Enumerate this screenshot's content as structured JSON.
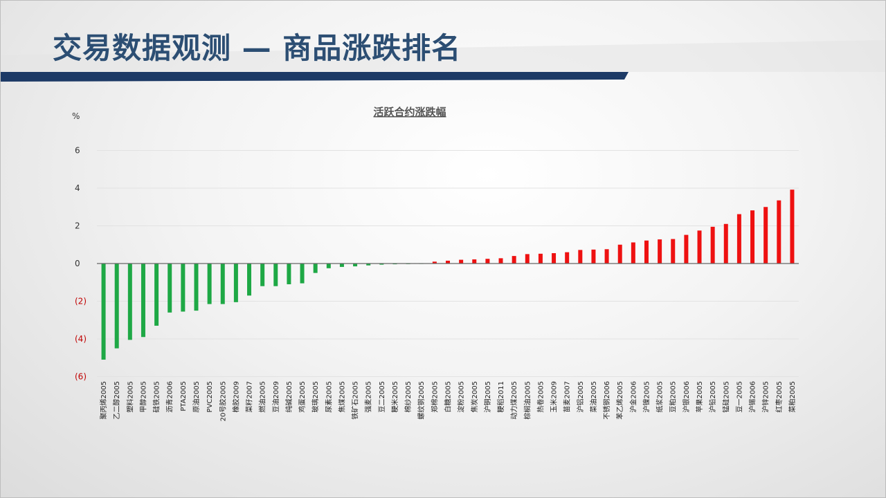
{
  "page": {
    "title": "交易数据观测 — 商品涨跌排名"
  },
  "colors": {
    "positive": "#ee1111",
    "negative": "#1ea845",
    "header_band": "#1d3a66",
    "title": "#2c4e73"
  },
  "chart_data": {
    "type": "bar",
    "title": "活跃合约涨跌幅",
    "xlabel": "",
    "ylabel": "%",
    "ylim": [
      -6,
      7
    ],
    "yticks": [
      {
        "value": 6,
        "label": "6"
      },
      {
        "value": 4,
        "label": "4"
      },
      {
        "value": 2,
        "label": "2"
      },
      {
        "value": 0,
        "label": "0"
      },
      {
        "value": -2,
        "label": "(2)"
      },
      {
        "value": -4,
        "label": "(4)"
      },
      {
        "value": -6,
        "label": "(6)"
      }
    ],
    "grid": true,
    "legend": "none",
    "categories": [
      "聚丙烯2005",
      "乙二醇2005",
      "塑料2005",
      "甲醇2005",
      "硅铁2005",
      "沥青2006",
      "PTA2005",
      "原油2005",
      "PVC2005",
      "20号胶2005",
      "橡胶2009",
      "菜籽2007",
      "燃油2005",
      "豆油2009",
      "纯碱2005",
      "鸡蛋2005",
      "玻璃2005",
      "尿素2005",
      "焦煤2005",
      "铁矿石2005",
      "强麦2005",
      "豆二2005",
      "粳米2005",
      "棉纱2005",
      "螺纹钢2005",
      "郑棉2005",
      "白糖2005",
      "淀粉2005",
      "焦炭2005",
      "沪铜2005",
      "粳稻2011",
      "动力煤2005",
      "棕榈油2005",
      "热卷2005",
      "玉米2009",
      "苗麦2007",
      "沪铝2005",
      "菜油2005",
      "不锈钢2006",
      "苯乙烯2005",
      "沪金2006",
      "沪镍2005",
      "纸浆2005",
      "豆粕2005",
      "沪银2006",
      "苹果2005",
      "沪铅2005",
      "锰硅2005",
      "豆一2005",
      "沪锡2006",
      "沪锌2005",
      "红枣2005",
      "菜粕2005"
    ],
    "values": [
      -5.1,
      -4.5,
      -4.05,
      -3.9,
      -3.3,
      -2.6,
      -2.55,
      -2.5,
      -2.15,
      -2.15,
      -2.05,
      -1.7,
      -1.2,
      -1.2,
      -1.1,
      -1.05,
      -0.5,
      -0.25,
      -0.18,
      -0.15,
      -0.1,
      -0.06,
      -0.04,
      -0.03,
      -0.02,
      0.1,
      0.15,
      0.2,
      0.22,
      0.25,
      0.28,
      0.4,
      0.5,
      0.52,
      0.55,
      0.6,
      0.72,
      0.74,
      0.76,
      1.0,
      1.12,
      1.22,
      1.28,
      1.3,
      1.52,
      1.75,
      1.95,
      2.1,
      2.62,
      2.82,
      3.0,
      3.35,
      3.92
    ]
  }
}
